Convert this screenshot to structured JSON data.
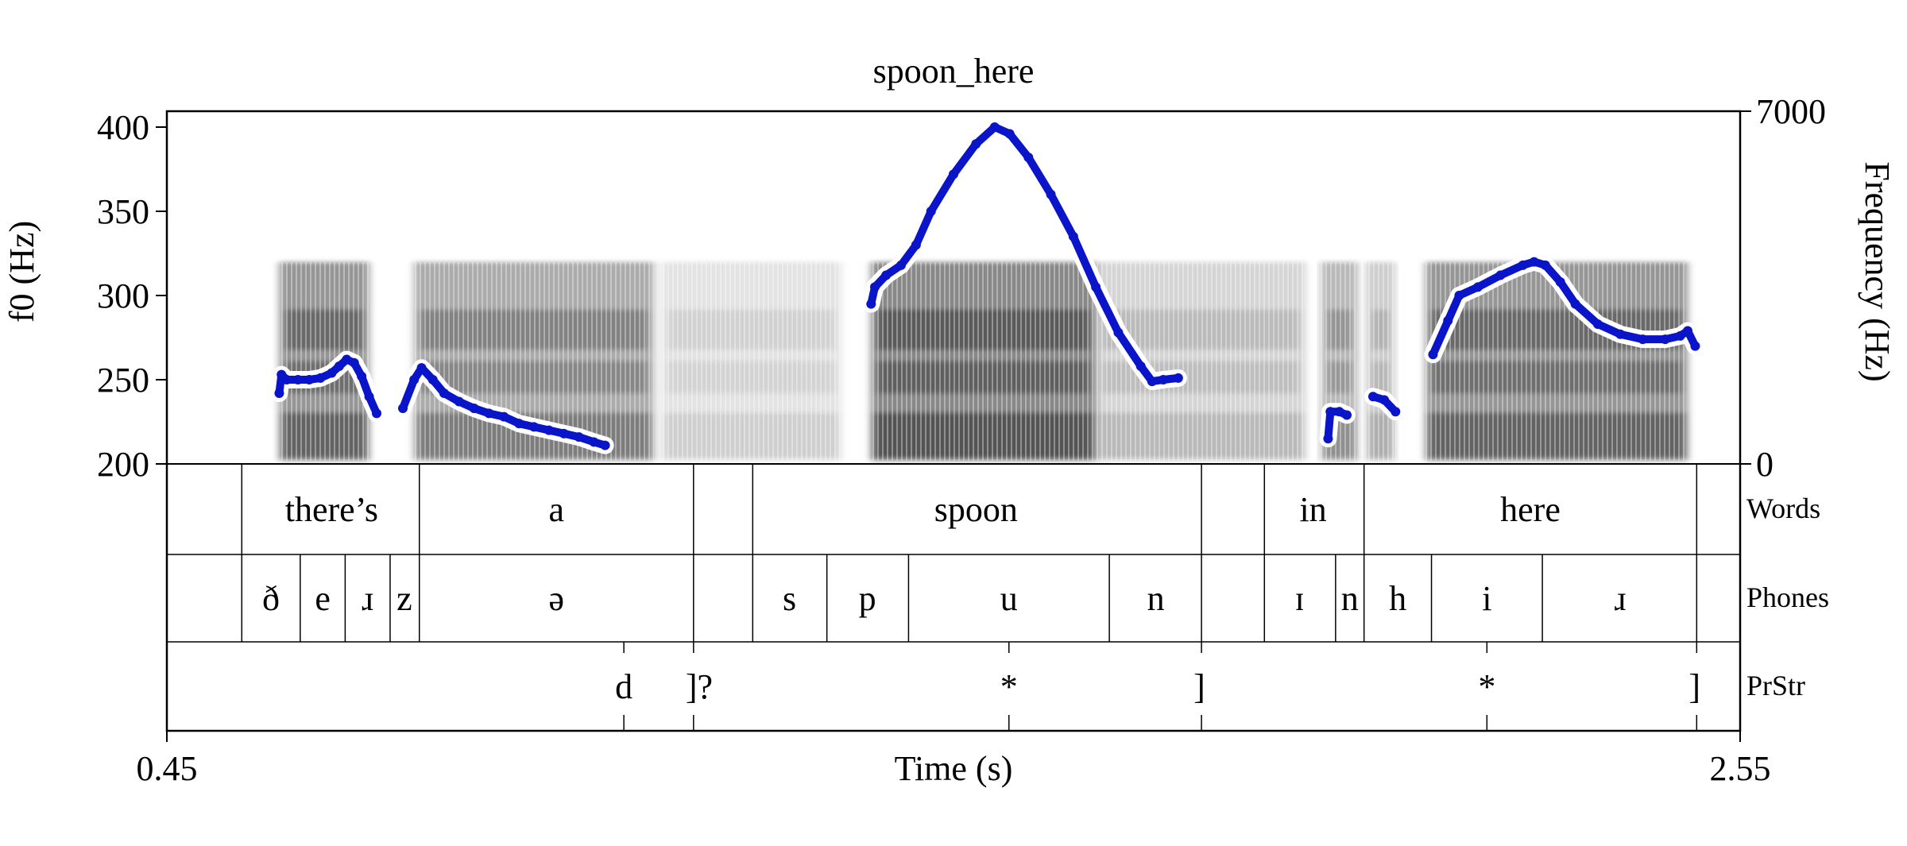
{
  "chart_data": {
    "type": "scatter",
    "title": "spoon_here",
    "xlabel": "Time (s)",
    "ylabel_left": "f0 (Hz)",
    "ylabel_right": "Frequency (Hz)",
    "xlim": [
      0.45,
      2.55
    ],
    "ylim_left": [
      200,
      400
    ],
    "ylim_right": [
      0,
      7000
    ],
    "x_tick_labels": [
      "0.45",
      "2.55"
    ],
    "y_ticks_left": [
      200,
      250,
      300,
      350,
      400
    ],
    "y_tick_labels_left": [
      "200",
      "250",
      "300",
      "350",
      "400"
    ],
    "y_tick_labels_right": [
      "0",
      "7000"
    ],
    "f0_color": "#0a14c8",
    "f0_segments": [
      {
        "points": [
          [
            0.6,
            242
          ],
          [
            0.603,
            253
          ],
          [
            0.61,
            250
          ],
          [
            0.625,
            250
          ],
          [
            0.64,
            250
          ],
          [
            0.655,
            251
          ],
          [
            0.67,
            254
          ],
          [
            0.68,
            258
          ],
          [
            0.69,
            262
          ],
          [
            0.7,
            260
          ],
          [
            0.71,
            252
          ],
          [
            0.72,
            240
          ],
          [
            0.73,
            230
          ]
        ]
      },
      {
        "points": [
          [
            0.765,
            233
          ],
          [
            0.78,
            250
          ],
          [
            0.79,
            257
          ],
          [
            0.805,
            250
          ],
          [
            0.82,
            242
          ],
          [
            0.84,
            237
          ],
          [
            0.86,
            233
          ],
          [
            0.88,
            230
          ],
          [
            0.9,
            228
          ],
          [
            0.92,
            224
          ],
          [
            0.94,
            222
          ],
          [
            0.96,
            220
          ],
          [
            0.98,
            218
          ],
          [
            1.0,
            216
          ],
          [
            1.02,
            213
          ],
          [
            1.035,
            211
          ]
        ]
      },
      {
        "points": [
          [
            1.39,
            295
          ],
          [
            1.395,
            305
          ],
          [
            1.41,
            312
          ],
          [
            1.43,
            318
          ],
          [
            1.45,
            330
          ],
          [
            1.47,
            350
          ],
          [
            1.5,
            372
          ],
          [
            1.53,
            390
          ],
          [
            1.555,
            400
          ],
          [
            1.575,
            396
          ],
          [
            1.6,
            382
          ],
          [
            1.63,
            360
          ],
          [
            1.66,
            335
          ],
          [
            1.69,
            305
          ],
          [
            1.72,
            278
          ],
          [
            1.75,
            258
          ],
          [
            1.765,
            249
          ],
          [
            1.78,
            250
          ],
          [
            1.8,
            251
          ]
        ]
      },
      {
        "points": [
          [
            2.0,
            215
          ],
          [
            2.003,
            231
          ],
          [
            2.015,
            231
          ],
          [
            2.025,
            229
          ]
        ]
      },
      {
        "points": [
          [
            2.06,
            240
          ],
          [
            2.075,
            238
          ],
          [
            2.09,
            231
          ]
        ]
      },
      {
        "points": [
          [
            2.14,
            265
          ],
          [
            2.16,
            285
          ],
          [
            2.175,
            300
          ],
          [
            2.2,
            305
          ],
          [
            2.23,
            312
          ],
          [
            2.26,
            318
          ],
          [
            2.275,
            320
          ],
          [
            2.29,
            318
          ],
          [
            2.31,
            308
          ],
          [
            2.33,
            295
          ],
          [
            2.36,
            283
          ],
          [
            2.39,
            277
          ],
          [
            2.42,
            274
          ],
          [
            2.45,
            274
          ],
          [
            2.47,
            276
          ],
          [
            2.48,
            279
          ],
          [
            2.49,
            270
          ]
        ]
      }
    ],
    "spectrogram_regions": [
      [
        0.6,
        0.72
      ],
      [
        0.78,
        1.1
      ],
      [
        1.11,
        1.35
      ],
      [
        1.39,
        1.69
      ],
      [
        1.69,
        1.97
      ],
      [
        1.99,
        2.04
      ],
      [
        2.05,
        2.09
      ],
      [
        2.13,
        2.48
      ]
    ],
    "tiers": [
      {
        "name": "Words",
        "boundaries": [
          0.55,
          0.787,
          1.153,
          1.232,
          1.831,
          1.915,
          2.048,
          2.492
        ],
        "labels": [
          {
            "text": "there’s",
            "x": 0.67
          },
          {
            "text": "a",
            "x": 0.97
          },
          {
            "text": "spoon",
            "x": 1.53
          },
          {
            "text": "in",
            "x": 1.98
          },
          {
            "text": "here",
            "x": 2.27
          }
        ]
      },
      {
        "name": "Phones",
        "boundaries": [
          0.55,
          0.628,
          0.688,
          0.748,
          0.787,
          1.153,
          1.232,
          1.331,
          1.44,
          1.708,
          1.831,
          1.915,
          2.01,
          2.048,
          2.138,
          2.286,
          2.492
        ],
        "labels": [
          {
            "text": "ð",
            "x": 0.589
          },
          {
            "text": "e",
            "x": 0.658
          },
          {
            "text": "ɹ",
            "x": 0.718
          },
          {
            "text": "z",
            "x": 0.767
          },
          {
            "text": "ə",
            "x": 0.97
          },
          {
            "text": "s",
            "x": 1.281
          },
          {
            "text": "p",
            "x": 1.385
          },
          {
            "text": "u",
            "x": 1.574
          },
          {
            "text": "n",
            "x": 1.77
          },
          {
            "text": "ɪ",
            "x": 1.962
          },
          {
            "text": "n",
            "x": 2.029
          },
          {
            "text": "h",
            "x": 2.093
          },
          {
            "text": "i",
            "x": 2.212
          },
          {
            "text": "ɹ",
            "x": 2.39
          }
        ]
      },
      {
        "name": "PrStr",
        "points": [
          {
            "text": "d",
            "x": 1.06
          },
          {
            "text": "]?",
            "x": 1.153
          },
          {
            "text": "*",
            "x": 1.574
          },
          {
            "text": "]",
            "x": 1.831
          },
          {
            "text": "*",
            "x": 2.212
          },
          {
            "text": "]",
            "x": 2.492
          }
        ]
      }
    ]
  }
}
